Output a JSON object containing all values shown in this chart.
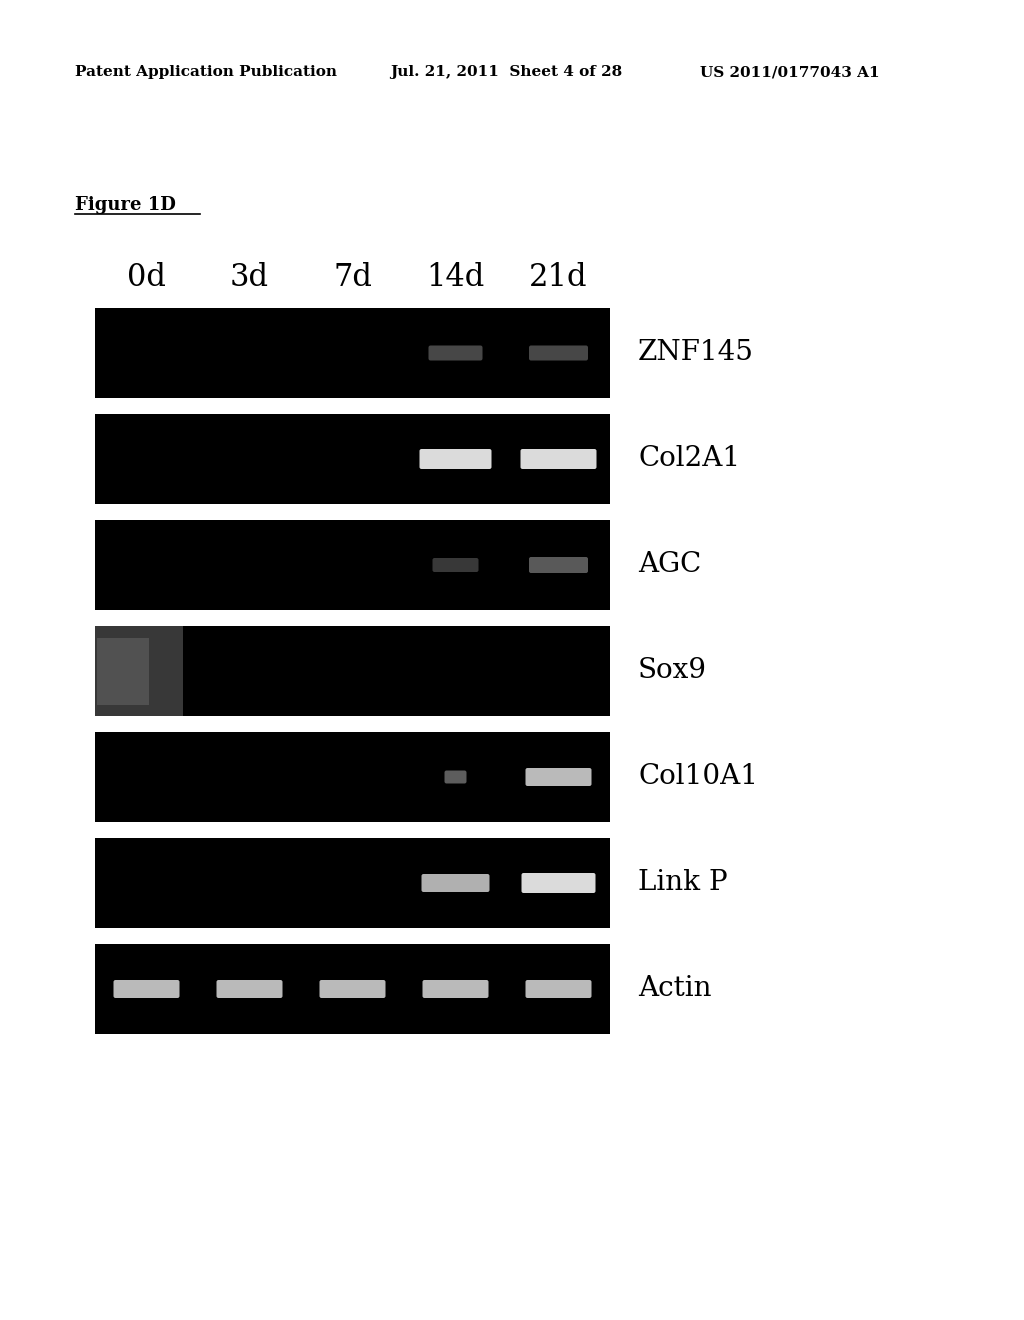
{
  "page_header_left": "Patent Application Publication",
  "page_header_center": "Jul. 21, 2011  Sheet 4 of 28",
  "page_header_right": "US 2011/0177043 A1",
  "figure_label": "Figure 1D",
  "col_labels": [
    "0d",
    "3d",
    "7d",
    "14d",
    "21d"
  ],
  "row_labels": [
    "ZNF145",
    "Col2A1",
    "AGC",
    "Sox9",
    "Col10A1",
    "Link P",
    "Actin"
  ],
  "bg_color": "#000000",
  "band_color": "#d0d0d0",
  "band_bright": "#e8e8e8",
  "sox9_left_color": "#555555",
  "background_color": "#ffffff"
}
